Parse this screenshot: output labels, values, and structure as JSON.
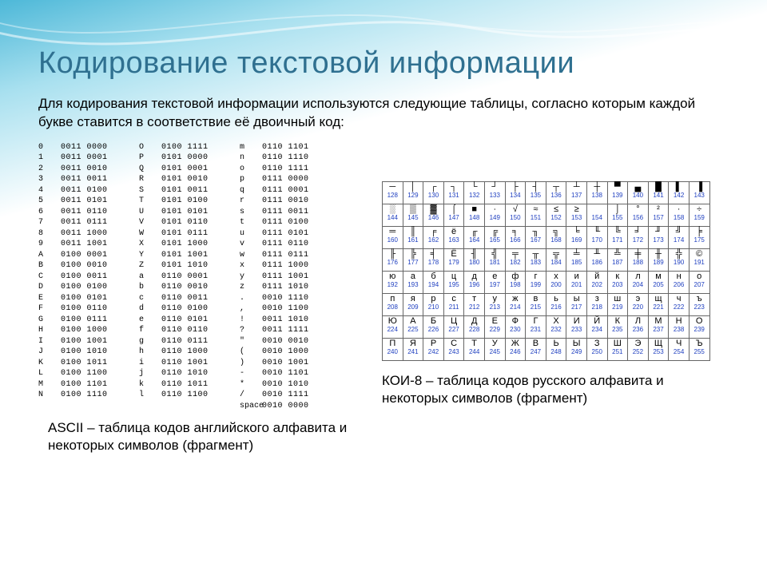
{
  "title": "Кодирование текстовой информации",
  "intro": "Для кодирования текстовой информации используются следующие таблицы, согласно которым каждой букве ставится в соответствие её двоичный код:",
  "ascii": {
    "caption": "ASCII – таблица кодов английского алфавита и некоторых символов (фрагмент)",
    "rows": [
      [
        "0",
        "0011 0000",
        "O",
        "0100 1111",
        "m",
        "0110 1101"
      ],
      [
        "1",
        "0011 0001",
        "P",
        "0101 0000",
        "n",
        "0110 1110"
      ],
      [
        "2",
        "0011 0010",
        "Q",
        "0101 0001",
        "o",
        "0110 1111"
      ],
      [
        "3",
        "0011 0011",
        "R",
        "0101 0010",
        "p",
        "0111 0000"
      ],
      [
        "4",
        "0011 0100",
        "S",
        "0101 0011",
        "q",
        "0111 0001"
      ],
      [
        "5",
        "0011 0101",
        "T",
        "0101 0100",
        "r",
        "0111 0010"
      ],
      [
        "6",
        "0011 0110",
        "U",
        "0101 0101",
        "s",
        "0111 0011"
      ],
      [
        "7",
        "0011 0111",
        "V",
        "0101 0110",
        "t",
        "0111 0100"
      ],
      [
        "8",
        "0011 1000",
        "W",
        "0101 0111",
        "u",
        "0111 0101"
      ],
      [
        "9",
        "0011 1001",
        "X",
        "0101 1000",
        "v",
        "0111 0110"
      ],
      [
        "A",
        "0100 0001",
        "Y",
        "0101 1001",
        "w",
        "0111 0111"
      ],
      [
        "B",
        "0100 0010",
        "Z",
        "0101 1010",
        "x",
        "0111 1000"
      ],
      [
        "C",
        "0100 0011",
        "a",
        "0110 0001",
        "y",
        "0111 1001"
      ],
      [
        "D",
        "0100 0100",
        "b",
        "0110 0010",
        "z",
        "0111 1010"
      ],
      [
        "E",
        "0100 0101",
        "c",
        "0110 0011",
        ".",
        "0010 1110"
      ],
      [
        "F",
        "0100 0110",
        "d",
        "0110 0100",
        ",",
        "0010 1100"
      ],
      [
        "G",
        "0100 0111",
        "e",
        "0110 0101",
        "!",
        "0011 1010"
      ],
      [
        "H",
        "0100 1000",
        "f",
        "0110 0110",
        "?",
        "0011 1111"
      ],
      [
        "I",
        "0100 1001",
        "g",
        "0110 0111",
        "\"",
        "0010 0010"
      ],
      [
        "J",
        "0100 1010",
        "h",
        "0110 1000",
        "(",
        "0010 1000"
      ],
      [
        "K",
        "0100 1011",
        "i",
        "0110 1001",
        ")",
        "0010 1001"
      ],
      [
        "L",
        "0100 1100",
        "j",
        "0110 1010",
        "-",
        "0010 1101"
      ],
      [
        "M",
        "0100 1101",
        "k",
        "0110 1011",
        "*",
        "0010 1010"
      ],
      [
        "N",
        "0100 1110",
        "l",
        "0110 1100",
        "/",
        "0010 1111"
      ],
      [
        "",
        "",
        "",
        "",
        "space",
        "0010 0000"
      ]
    ]
  },
  "koi": {
    "caption": "КОИ-8 – таблица кодов русского алфавита и некоторых символов (фрагмент)",
    "start": 128,
    "symbols": [
      "─",
      "│",
      "┌",
      "┐",
      "└",
      "┘",
      "├",
      "┤",
      "┬",
      "┴",
      "┼",
      "▀",
      "▄",
      "█",
      "▌",
      "▐",
      "░",
      "▒",
      "▓",
      "⌠",
      "■",
      "∙",
      "√",
      "≈",
      "≤",
      "≥",
      " ",
      "⌡",
      "°",
      "²",
      "·",
      "÷",
      "═",
      "║",
      "╒",
      "ё",
      "╓",
      "╔",
      "╕",
      "╖",
      "╗",
      "╘",
      "╙",
      "╚",
      "╛",
      "╜",
      "╝",
      "╞",
      "╟",
      "╠",
      "╡",
      "Ё",
      "╢",
      "╣",
      "╤",
      "╥",
      "╦",
      "╧",
      "╨",
      "╩",
      "╪",
      "╫",
      "╬",
      "©",
      "ю",
      "а",
      "б",
      "ц",
      "д",
      "е",
      "ф",
      "г",
      "х",
      "и",
      "й",
      "к",
      "л",
      "м",
      "н",
      "о",
      "п",
      "я",
      "р",
      "с",
      "т",
      "у",
      "ж",
      "в",
      "ь",
      "ы",
      "з",
      "ш",
      "э",
      "щ",
      "ч",
      "ъ",
      "Ю",
      "А",
      "Б",
      "Ц",
      "Д",
      "Е",
      "Ф",
      "Г",
      "Х",
      "И",
      "Й",
      "К",
      "Л",
      "М",
      "Н",
      "О",
      "П",
      "Я",
      "Р",
      "С",
      "Т",
      "У",
      "Ж",
      "В",
      "Ь",
      "Ы",
      "З",
      "Ш",
      "Э",
      "Щ",
      "Ч",
      "Ъ"
    ]
  }
}
